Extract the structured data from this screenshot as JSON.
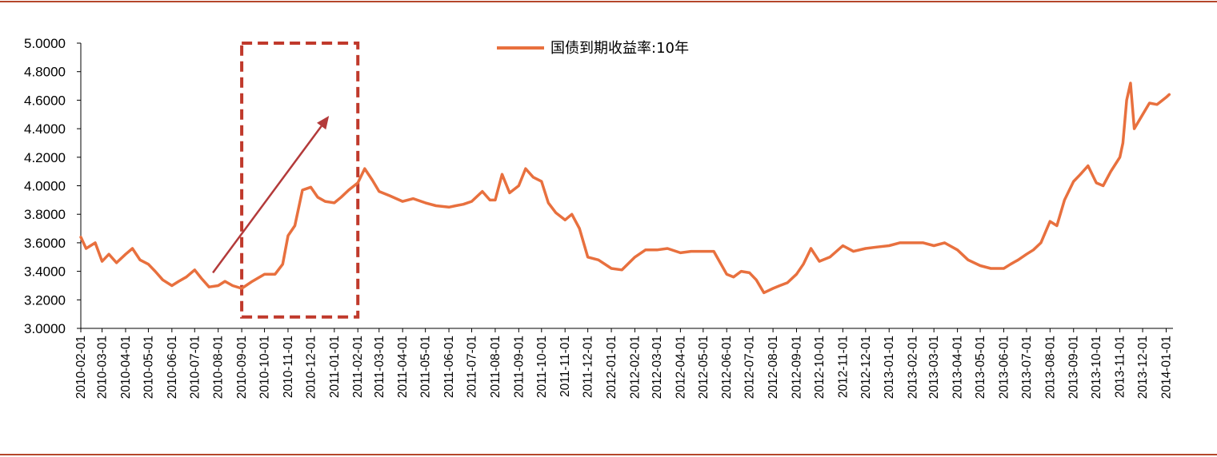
{
  "chart_data": {
    "type": "line",
    "title": "",
    "xlabel": "",
    "ylabel": "",
    "ylim": [
      3.0,
      5.0
    ],
    "y_ticks": [
      "3.0000",
      "3.2000",
      "3.4000",
      "3.6000",
      "3.8000",
      "4.0000",
      "4.2000",
      "4.4000",
      "4.6000",
      "4.8000",
      "5.0000"
    ],
    "x_ticks": [
      "2010-02-01",
      "2010-03-01",
      "2010-04-01",
      "2010-05-01",
      "2010-06-01",
      "2010-07-01",
      "2010-08-01",
      "2010-09-01",
      "2010-10-01",
      "2010-11-01",
      "2010-12-01",
      "2011-01-01",
      "2011-02-01",
      "2011-03-01",
      "2011-04-01",
      "2011-05-01",
      "2011-06-01",
      "2011-07-01",
      "2011-08-01",
      "2011-09-01",
      "2011-10-01",
      "2011-11-01",
      "2011-12-01",
      "2012-01-01",
      "2012-02-01",
      "2012-03-01",
      "2012-04-01",
      "2012-05-01",
      "2012-06-01",
      "2012-07-01",
      "2012-08-01",
      "2012-09-01",
      "2012-10-01",
      "2012-11-01",
      "2012-12-01",
      "2013-01-01",
      "2013-02-01",
      "2013-03-01",
      "2013-04-01",
      "2013-05-01",
      "2013-06-01",
      "2013-07-01",
      "2013-08-01",
      "2013-09-01",
      "2013-10-01",
      "2013-11-01",
      "2013-12-01",
      "2014-01-01"
    ],
    "legend": "top-center",
    "grid": false,
    "colors": {
      "line": "#e8703e",
      "box": "#c0392b",
      "arrow": "#b33a3a",
      "rule": "#b5472b"
    },
    "series": [
      {
        "name": "国债到期收益率:10年",
        "x": [
          "2010-02-01",
          "2010-02-08",
          "2010-02-20",
          "2010-03-01",
          "2010-03-10",
          "2010-03-20",
          "2010-04-01",
          "2010-04-10",
          "2010-04-20",
          "2010-05-01",
          "2010-05-10",
          "2010-05-20",
          "2010-06-01",
          "2010-06-10",
          "2010-06-20",
          "2010-07-01",
          "2010-07-10",
          "2010-07-20",
          "2010-08-01",
          "2010-08-10",
          "2010-08-20",
          "2010-09-01",
          "2010-09-15",
          "2010-10-01",
          "2010-10-15",
          "2010-10-25",
          "2010-11-01",
          "2010-11-10",
          "2010-11-20",
          "2010-12-01",
          "2010-12-10",
          "2010-12-20",
          "2011-01-01",
          "2011-01-10",
          "2011-01-20",
          "2011-02-01",
          "2011-02-10",
          "2011-02-20",
          "2011-03-01",
          "2011-03-15",
          "2011-04-01",
          "2011-04-15",
          "2011-05-01",
          "2011-05-15",
          "2011-06-01",
          "2011-06-10",
          "2011-06-20",
          "2011-07-01",
          "2011-07-15",
          "2011-07-25",
          "2011-08-01",
          "2011-08-10",
          "2011-08-20",
          "2011-09-01",
          "2011-09-10",
          "2011-09-20",
          "2011-10-01",
          "2011-10-10",
          "2011-10-20",
          "2011-11-01",
          "2011-11-10",
          "2011-11-20",
          "2011-12-01",
          "2011-12-15",
          "2012-01-01",
          "2012-01-15",
          "2012-02-01",
          "2012-02-15",
          "2012-03-01",
          "2012-03-15",
          "2012-04-01",
          "2012-04-15",
          "2012-05-01",
          "2012-05-15",
          "2012-06-01",
          "2012-06-10",
          "2012-06-20",
          "2012-07-01",
          "2012-07-10",
          "2012-07-20",
          "2012-08-01",
          "2012-08-10",
          "2012-08-20",
          "2012-09-01",
          "2012-09-10",
          "2012-09-20",
          "2012-10-01",
          "2012-10-15",
          "2012-11-01",
          "2012-11-15",
          "2012-12-01",
          "2012-12-15",
          "2013-01-01",
          "2013-01-15",
          "2013-02-01",
          "2013-02-15",
          "2013-03-01",
          "2013-03-15",
          "2013-04-01",
          "2013-04-15",
          "2013-05-01",
          "2013-05-15",
          "2013-06-01",
          "2013-06-10",
          "2013-06-20",
          "2013-07-01",
          "2013-07-10",
          "2013-07-20",
          "2013-08-01",
          "2013-08-10",
          "2013-08-20",
          "2013-09-01",
          "2013-09-10",
          "2013-09-20",
          "2013-10-01",
          "2013-10-10",
          "2013-10-20",
          "2013-11-01",
          "2013-11-05",
          "2013-11-10",
          "2013-11-15",
          "2013-11-20",
          "2013-12-01",
          "2013-12-10",
          "2013-12-20",
          "2014-01-01",
          "2014-01-05"
        ],
        "values": [
          3.64,
          3.56,
          3.6,
          3.47,
          3.52,
          3.46,
          3.52,
          3.56,
          3.48,
          3.45,
          3.4,
          3.34,
          3.3,
          3.33,
          3.36,
          3.41,
          3.35,
          3.29,
          3.3,
          3.33,
          3.3,
          3.28,
          3.33,
          3.38,
          3.38,
          3.45,
          3.65,
          3.72,
          3.97,
          3.99,
          3.92,
          3.89,
          3.88,
          3.92,
          3.97,
          4.02,
          4.12,
          4.04,
          3.96,
          3.93,
          3.89,
          3.91,
          3.88,
          3.86,
          3.85,
          3.86,
          3.87,
          3.89,
          3.96,
          3.9,
          3.9,
          4.08,
          3.95,
          4.0,
          4.12,
          4.06,
          4.03,
          3.88,
          3.81,
          3.76,
          3.8,
          3.7,
          3.5,
          3.48,
          3.42,
          3.41,
          3.5,
          3.55,
          3.55,
          3.56,
          3.53,
          3.54,
          3.54,
          3.54,
          3.38,
          3.36,
          3.4,
          3.39,
          3.34,
          3.25,
          3.28,
          3.3,
          3.32,
          3.38,
          3.45,
          3.56,
          3.47,
          3.5,
          3.58,
          3.54,
          3.56,
          3.57,
          3.58,
          3.6,
          3.6,
          3.6,
          3.58,
          3.6,
          3.55,
          3.48,
          3.44,
          3.42,
          3.42,
          3.45,
          3.48,
          3.52,
          3.55,
          3.6,
          3.75,
          3.72,
          3.9,
          4.03,
          4.08,
          4.14,
          4.02,
          4.0,
          4.1,
          4.2,
          4.3,
          4.6,
          4.72,
          4.4,
          4.5,
          4.58,
          4.57,
          4.62,
          4.64
        ]
      }
    ],
    "annotations": {
      "highlight_box": {
        "x_start": "2010-09-01",
        "x_end": "2011-02-01",
        "y_start": 3.08,
        "y_end": 5.0
      },
      "arrow": {
        "from": {
          "x": "2010-07-25",
          "y": 3.39
        },
        "to": {
          "x": "2010-12-25",
          "y": 4.49
        }
      }
    }
  }
}
